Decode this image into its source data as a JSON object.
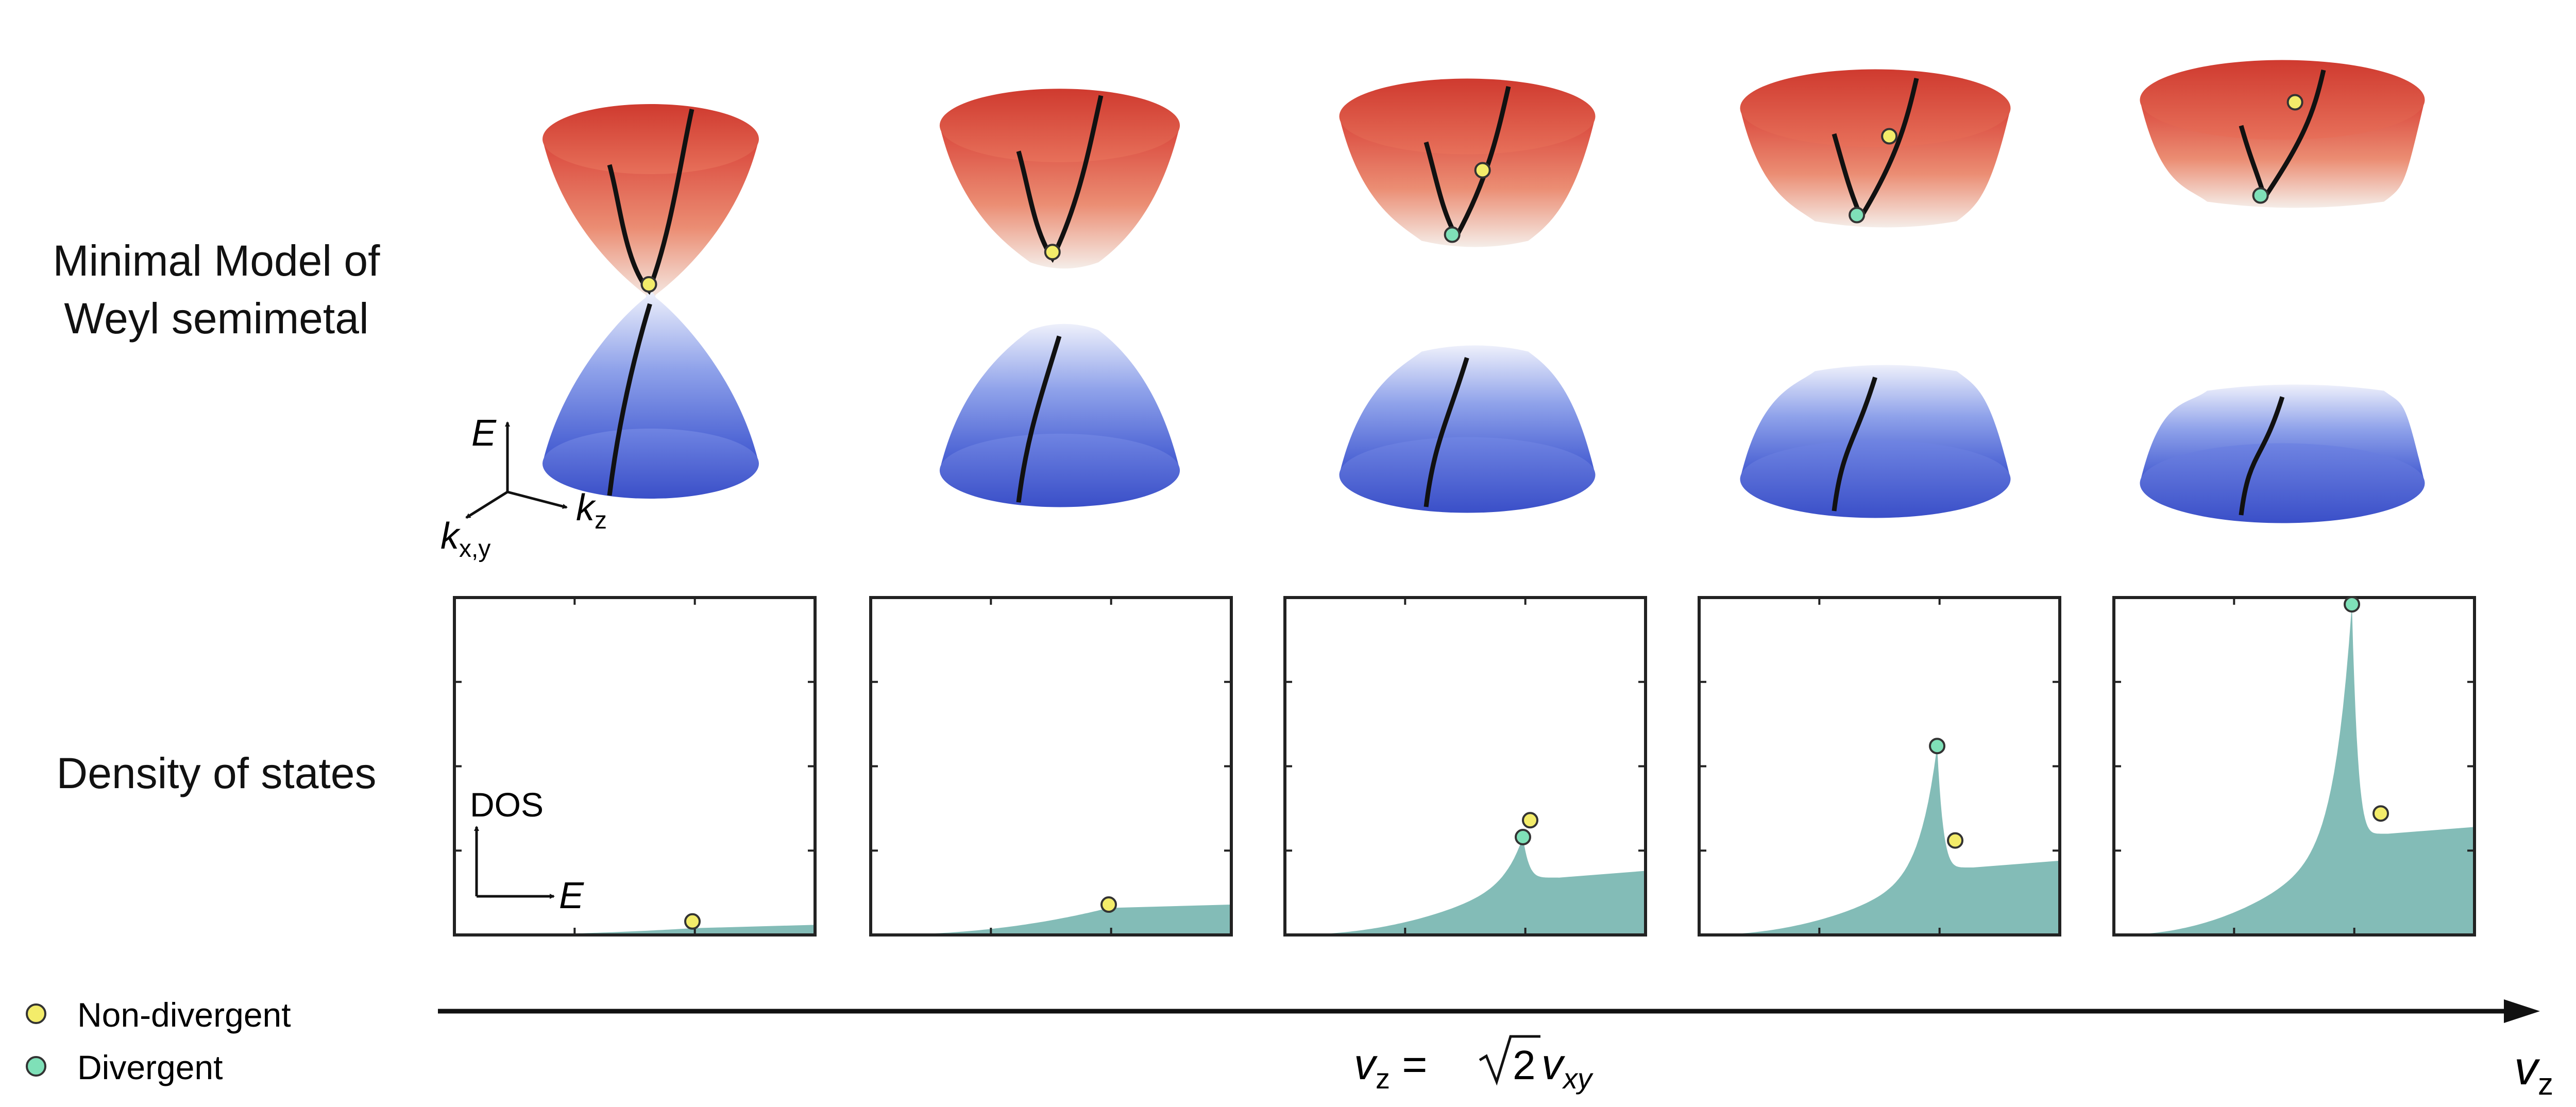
{
  "row_labels": {
    "top_line1": "Minimal Model of",
    "top_line2": "Weyl semimetal",
    "bottom": "Density of states"
  },
  "axes_3d": {
    "energy": "E",
    "k_perp": "k",
    "k_perp_sub": "x,y",
    "k_par": "k",
    "k_par_sub": "z"
  },
  "dos_axes": {
    "y": "DOS",
    "x": "E"
  },
  "legend": [
    {
      "label": "Non-divergent",
      "color": "#f3ec6a"
    },
    {
      "label": "Divergent",
      "color": "#7fe0b8"
    }
  ],
  "bottom_axis": {
    "label_main": "v",
    "label_sub": "z",
    "marker": {
      "lhs": "v",
      "lhs_sub": "z",
      "eq": " = ",
      "root": "2",
      "rhs": "v",
      "rhs_sub": "xy"
    }
  },
  "colors": {
    "upper_band": "#d9453a",
    "lower_band": "#3d55cf",
    "dos_fill": "#83bcb7",
    "frame": "#222222"
  },
  "panels": [
    {
      "index": 1,
      "split": 0.0,
      "dos_level": 0.02,
      "peak": null,
      "nondiv": 0.04
    },
    {
      "index": 2,
      "split": 0.33,
      "dos_level": 0.08,
      "peak": null,
      "nondiv": 0.09
    },
    {
      "index": 3,
      "split": 0.55,
      "dos_level": 0.17,
      "peak": 0.29,
      "nondiv": 0.34
    },
    {
      "index": 4,
      "split": 0.75,
      "dos_level": 0.2,
      "peak": 0.56,
      "nondiv": 0.28
    },
    {
      "index": 5,
      "split": 0.95,
      "dos_level": 0.3,
      "peak": 0.98,
      "nondiv": 0.36
    }
  ]
}
